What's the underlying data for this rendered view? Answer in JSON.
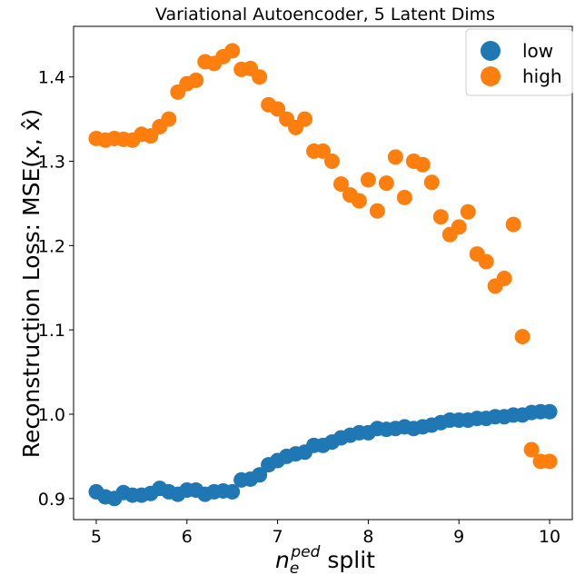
{
  "chart_data": {
    "type": "scatter",
    "title": "Variational Autoencoder, 5 Latent Dims",
    "xlabel_main": "n",
    "xlabel_sub": "e",
    "xlabel_sup": "ped",
    "xlabel_rest": " split",
    "ylabel": "Reconstruction Loss: MSE(x, x̂)",
    "xlim": [
      4.75,
      10.25
    ],
    "ylim": [
      0.875,
      1.46
    ],
    "xticks": [
      5,
      6,
      7,
      8,
      9,
      10
    ],
    "xtick_labels": [
      "5",
      "6",
      "7",
      "8",
      "9",
      "10"
    ],
    "yticks": [
      0.9,
      1.0,
      1.1,
      1.2,
      1.3,
      1.4
    ],
    "ytick_labels": [
      "0.9",
      "1.0",
      "1.1",
      "1.2",
      "1.3",
      "1.4"
    ],
    "grid": false,
    "legend_position": "top-right",
    "series": [
      {
        "name": "low",
        "color": "#1f77b4",
        "x": [
          5.0,
          5.1,
          5.2,
          5.3,
          5.4,
          5.5,
          5.6,
          5.7,
          5.8,
          5.9,
          6.0,
          6.1,
          6.2,
          6.3,
          6.4,
          6.5,
          6.6,
          6.7,
          6.8,
          6.9,
          7.0,
          7.1,
          7.2,
          7.3,
          7.4,
          7.5,
          7.6,
          7.7,
          7.8,
          7.9,
          8.0,
          8.1,
          8.2,
          8.3,
          8.4,
          8.5,
          8.6,
          8.7,
          8.8,
          8.9,
          9.0,
          9.1,
          9.2,
          9.3,
          9.4,
          9.5,
          9.6,
          9.7,
          9.8,
          9.9,
          10.0
        ],
        "y": [
          0.908,
          0.902,
          0.9,
          0.907,
          0.904,
          0.904,
          0.906,
          0.912,
          0.908,
          0.905,
          0.91,
          0.91,
          0.905,
          0.908,
          0.909,
          0.908,
          0.922,
          0.923,
          0.928,
          0.94,
          0.945,
          0.95,
          0.953,
          0.955,
          0.963,
          0.963,
          0.967,
          0.972,
          0.975,
          0.978,
          0.978,
          0.983,
          0.982,
          0.983,
          0.985,
          0.983,
          0.985,
          0.987,
          0.99,
          0.993,
          0.993,
          0.993,
          0.995,
          0.995,
          0.997,
          0.997,
          0.999,
          0.999,
          1.002,
          1.003,
          1.003
        ]
      },
      {
        "name": "high",
        "color": "#ff7f0e",
        "x": [
          5.0,
          5.1,
          5.2,
          5.3,
          5.4,
          5.5,
          5.6,
          5.7,
          5.8,
          5.9,
          6.0,
          6.1,
          6.2,
          6.3,
          6.4,
          6.5,
          6.6,
          6.7,
          6.8,
          6.9,
          7.0,
          7.1,
          7.2,
          7.3,
          7.4,
          7.5,
          7.6,
          7.7,
          7.8,
          7.9,
          8.0,
          8.1,
          8.2,
          8.3,
          8.4,
          8.5,
          8.6,
          8.7,
          8.8,
          8.9,
          9.0,
          9.1,
          9.2,
          9.3,
          9.4,
          9.5,
          9.6,
          9.7,
          9.8,
          9.9,
          10.0
        ],
        "y": [
          1.327,
          1.325,
          1.327,
          1.326,
          1.325,
          1.332,
          1.33,
          1.341,
          1.35,
          1.382,
          1.392,
          1.396,
          1.418,
          1.416,
          1.424,
          1.431,
          1.409,
          1.41,
          1.4,
          1.367,
          1.362,
          1.35,
          1.34,
          1.35,
          1.312,
          1.312,
          1.3,
          1.273,
          1.26,
          1.253,
          1.278,
          1.241,
          1.274,
          1.305,
          1.257,
          1.3,
          1.296,
          1.275,
          1.234,
          1.213,
          1.222,
          1.24,
          1.19,
          1.181,
          1.152,
          1.161,
          1.225,
          1.092,
          0.958,
          0.944,
          0.944
        ]
      }
    ]
  }
}
